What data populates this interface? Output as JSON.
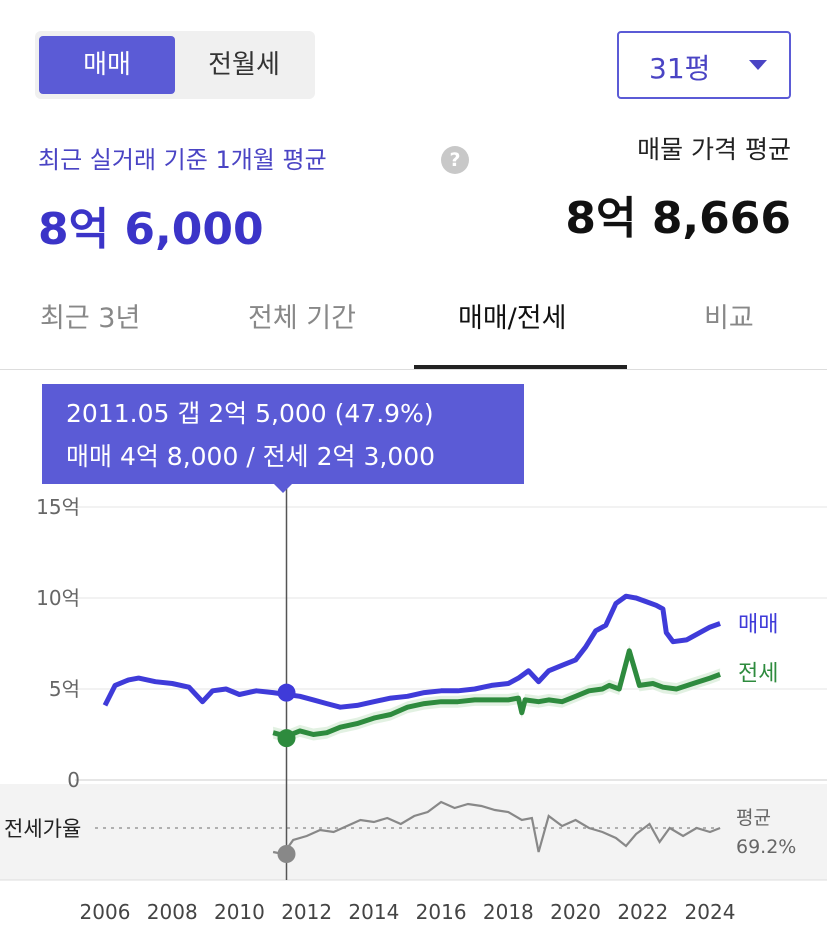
{
  "deal_toggle": {
    "sale_label": "매매",
    "jeonse_label": "전월세"
  },
  "size_select": {
    "value": "31평"
  },
  "summary": {
    "recent_label": "최근 실거래 기준 1개월 평균",
    "recent_price": "8억 6,000",
    "help_glyph": "?",
    "listing_label": "매물 가격 평균",
    "listing_price": "8억 8,666"
  },
  "tabs": [
    {
      "label": "최근 3년",
      "active": false
    },
    {
      "label": "전체 기간",
      "active": false
    },
    {
      "label": "매매/전세",
      "active": true
    },
    {
      "label": "비교",
      "active": false
    }
  ],
  "tooltip": {
    "line1": "2011.05  갭 2억 5,000 (47.9%)",
    "line2": "매매 4억 8,000 / 전세 2억 3,000"
  },
  "chart_data": {
    "type": "line",
    "x_ticks": [
      "2006",
      "2008",
      "2010",
      "2012",
      "2014",
      "2016",
      "2018",
      "2020",
      "2022",
      "2024"
    ],
    "y_ticks": [
      "15억",
      "10억",
      "5억",
      "0"
    ],
    "ylim": [
      0,
      15
    ],
    "ratio_label": "전세가율",
    "average_label": "평균",
    "average_value": "69.2%",
    "colors": {
      "sale": "#3f3bd9",
      "jeonse": "#2e8b3e",
      "ratio": "#888888",
      "band": "#d6ebd6"
    },
    "cursor": {
      "date": "2011.05",
      "sale": 4.8,
      "jeonse": 2.3
    },
    "series": [
      {
        "name": "매매",
        "x": [
          2006.0,
          2006.3,
          2006.7,
          2007.0,
          2007.5,
          2008.0,
          2008.5,
          2008.9,
          2009.2,
          2009.6,
          2010.0,
          2010.5,
          2011.0,
          2011.4,
          2011.8,
          2012.2,
          2012.6,
          2013.0,
          2013.5,
          2014.0,
          2014.5,
          2015.0,
          2015.5,
          2016.0,
          2016.5,
          2017.0,
          2017.5,
          2018.0,
          2018.3,
          2018.6,
          2018.9,
          2019.2,
          2019.6,
          2020.0,
          2020.3,
          2020.6,
          2020.9,
          2021.2,
          2021.5,
          2021.8,
          2022.1,
          2022.4,
          2022.6,
          2022.7,
          2022.9,
          2023.3,
          2023.7,
          2024.0,
          2024.3
        ],
        "values": [
          4.1,
          5.2,
          5.5,
          5.6,
          5.4,
          5.3,
          5.1,
          4.3,
          4.9,
          5.0,
          4.7,
          4.9,
          4.8,
          4.7,
          4.6,
          4.4,
          4.2,
          4.0,
          4.1,
          4.3,
          4.5,
          4.6,
          4.8,
          4.9,
          4.9,
          5.0,
          5.2,
          5.3,
          5.6,
          6.0,
          5.4,
          6.0,
          6.3,
          6.6,
          7.3,
          8.2,
          8.5,
          9.7,
          10.1,
          10.0,
          9.8,
          9.6,
          9.4,
          8.1,
          7.6,
          7.7,
          8.1,
          8.4,
          8.6
        ]
      },
      {
        "name": "전세",
        "x": [
          2011.0,
          2011.4,
          2011.8,
          2012.2,
          2012.6,
          2013.0,
          2013.5,
          2014.0,
          2014.5,
          2015.0,
          2015.5,
          2016.0,
          2016.5,
          2017.0,
          2017.5,
          2018.0,
          2018.3,
          2018.4,
          2018.5,
          2018.9,
          2019.2,
          2019.6,
          2020.0,
          2020.4,
          2020.8,
          2021.0,
          2021.3,
          2021.6,
          2021.9,
          2022.3,
          2022.6,
          2023.0,
          2023.5,
          2024.0,
          2024.3
        ],
        "values": [
          2.6,
          2.4,
          2.7,
          2.5,
          2.6,
          2.9,
          3.1,
          3.4,
          3.6,
          4.0,
          4.2,
          4.3,
          4.3,
          4.4,
          4.4,
          4.4,
          4.5,
          3.7,
          4.4,
          4.3,
          4.4,
          4.3,
          4.6,
          4.9,
          5.0,
          5.2,
          5.0,
          7.1,
          5.2,
          5.3,
          5.1,
          5.0,
          5.3,
          5.6,
          5.8
        ]
      },
      {
        "name": "전세가율",
        "x": [
          2011.0,
          2011.3,
          2011.6,
          2012.0,
          2012.4,
          2012.8,
          2013.2,
          2013.6,
          2014.0,
          2014.4,
          2014.8,
          2015.2,
          2015.6,
          2016.0,
          2016.4,
          2016.8,
          2017.2,
          2017.6,
          2018.0,
          2018.4,
          2018.7,
          2018.9,
          2019.2,
          2019.6,
          2020.0,
          2020.4,
          2020.8,
          2021.2,
          2021.5,
          2021.8,
          2022.2,
          2022.5,
          2022.8,
          2023.2,
          2023.6,
          2024.0,
          2024.3
        ],
        "values": [
          50,
          49,
          56,
          58,
          61,
          60,
          63,
          66,
          65,
          67,
          64,
          68,
          70,
          75,
          72,
          74,
          73,
          71,
          70,
          66,
          67,
          50,
          68,
          63,
          66,
          62,
          60,
          57,
          53,
          59,
          64,
          55,
          62,
          58,
          62,
          60,
          62
        ]
      }
    ]
  }
}
